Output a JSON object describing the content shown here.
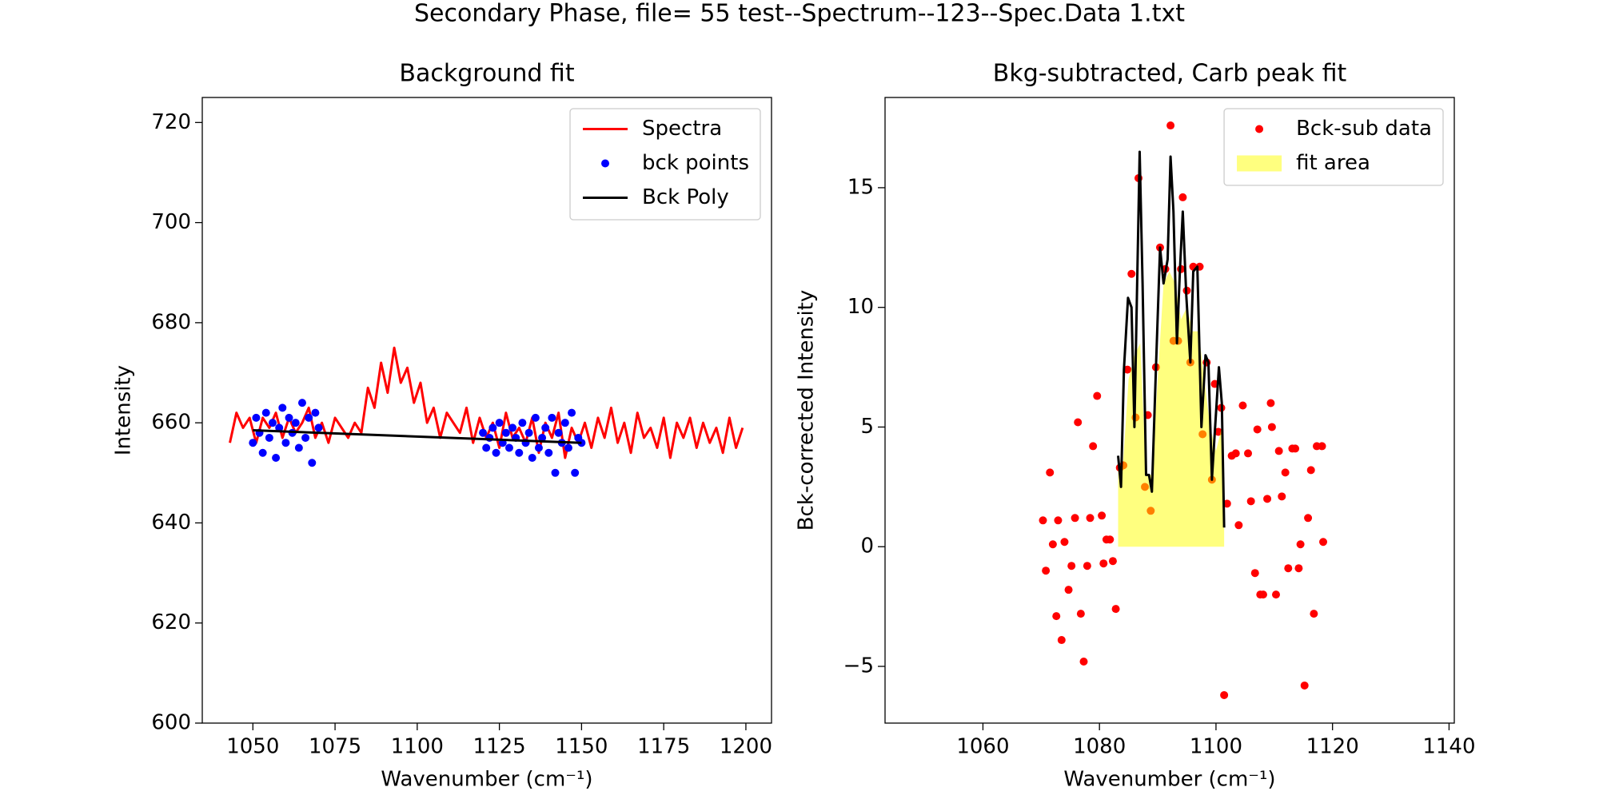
{
  "title": "Secondary Phase, file= 55 test--Spectrum--123--Spec.Data 1.txt",
  "chart_data": [
    {
      "type": "line",
      "title": "Background fit",
      "x_label": "Wavenumber (cm⁻¹)",
      "y_label": "Intensity",
      "xlim": [
        1034.6,
        1207.8
      ],
      "ylim": [
        600,
        725
      ],
      "xticks": [
        1050,
        1075,
        1100,
        1125,
        1150,
        1175,
        1200
      ],
      "yticks": [
        600,
        620,
        640,
        660,
        680,
        700,
        720
      ],
      "legend": "upper right",
      "series": [
        {
          "name": "Spectra",
          "style": "line",
          "color": "#ff0000",
          "x": [
            1043,
            1045,
            1047,
            1049,
            1051,
            1053,
            1055,
            1057,
            1059,
            1061,
            1063,
            1065,
            1067,
            1069,
            1071,
            1073,
            1075,
            1077,
            1079,
            1081,
            1083,
            1085,
            1087,
            1089,
            1091,
            1093,
            1095,
            1097,
            1099,
            1101,
            1103,
            1105,
            1107,
            1109,
            1111,
            1113,
            1115,
            1117,
            1119,
            1121,
            1123,
            1125,
            1127,
            1129,
            1131,
            1133,
            1135,
            1137,
            1139,
            1141,
            1143,
            1145,
            1147,
            1149,
            1151,
            1153,
            1155,
            1157,
            1159,
            1161,
            1163,
            1165,
            1167,
            1169,
            1171,
            1173,
            1175,
            1177,
            1179,
            1181,
            1183,
            1185,
            1187,
            1189,
            1191,
            1193,
            1195,
            1197,
            1199
          ],
          "values": [
            656,
            662,
            659,
            661,
            656,
            661,
            659,
            662,
            657,
            661,
            658,
            660,
            663,
            657,
            660,
            656,
            661,
            659,
            657,
            660,
            658,
            667,
            663,
            672,
            666,
            675,
            668,
            671,
            664,
            668,
            660,
            663,
            657,
            662,
            660,
            658,
            663,
            656,
            661,
            657,
            660,
            655,
            662,
            657,
            659,
            656,
            661,
            654,
            660,
            657,
            662,
            653,
            659,
            656,
            660,
            655,
            661,
            657,
            663,
            656,
            660,
            654,
            662,
            657,
            659,
            655,
            661,
            653,
            660,
            657,
            661,
            655,
            660,
            656,
            659,
            654,
            661,
            655,
            659
          ]
        },
        {
          "name": "bck points",
          "style": "scatter",
          "color": "#0000ff",
          "x": [
            1050,
            1051,
            1052,
            1053,
            1054,
            1055,
            1056,
            1057,
            1058,
            1059,
            1060,
            1061,
            1062,
            1063,
            1064,
            1065,
            1066,
            1067,
            1068,
            1069,
            1070,
            1120,
            1121,
            1122,
            1123,
            1124,
            1125,
            1126,
            1127,
            1128,
            1129,
            1130,
            1131,
            1132,
            1133,
            1134,
            1135,
            1136,
            1137,
            1138,
            1139,
            1140,
            1141,
            1142,
            1143,
            1144,
            1145,
            1146,
            1147,
            1148,
            1149,
            1150
          ],
          "values": [
            656,
            661,
            658,
            654,
            662,
            657,
            660,
            653,
            659,
            663,
            656,
            661,
            658,
            660,
            655,
            664,
            657,
            661,
            652,
            662,
            659,
            658,
            655,
            657,
            659,
            654,
            660,
            656,
            658,
            655,
            659,
            657,
            654,
            660,
            656,
            658,
            653,
            661,
            655,
            657,
            659,
            654,
            661,
            650,
            658,
            656,
            660,
            655,
            662,
            650,
            657,
            656
          ]
        },
        {
          "name": "Bck Poly",
          "style": "line",
          "color": "#000000",
          "x": [
            1050,
            1150
          ],
          "values": [
            658.5,
            656
          ]
        }
      ]
    },
    {
      "type": "line",
      "title": "Bkg-subtracted, Carb peak fit",
      "x_label": "Wavenumber (cm⁻¹)",
      "y_label": "Bck-corrected Intensity",
      "xlim": [
        1043.2,
        1140.9
      ],
      "ylim": [
        -7.37,
        18.77
      ],
      "xticks": [
        1060,
        1080,
        1100,
        1120,
        1140
      ],
      "yticks": [
        {
          "value": -5,
          "label": "−5"
        },
        0,
        5,
        10,
        15
      ],
      "legend": "upper right",
      "series": [
        {
          "name": "Bck-sub data",
          "style": "scatter",
          "color": "#ff0000",
          "x": [
            1070.3,
            1070.8,
            1071.5,
            1072.0,
            1072.6,
            1072.9,
            1073.5,
            1074.0,
            1074.7,
            1075.2,
            1075.8,
            1076.3,
            1076.8,
            1077.3,
            1077.9,
            1078.4,
            1078.9,
            1079.6,
            1080.4,
            1080.7,
            1081.2,
            1081.8,
            1082.3,
            1082.8,
            1083.5,
            1084.1,
            1084.8,
            1085.5,
            1086.2,
            1086.7,
            1087.8,
            1088.3,
            1088.8,
            1089.7,
            1090.4,
            1091.3,
            1092.2,
            1092.7,
            1093.5,
            1094.0,
            1094.3,
            1095.0,
            1095.6,
            1096.1,
            1097.2,
            1097.7,
            1098.4,
            1099.3,
            1099.8,
            1100.4,
            1100.9,
            1101.4,
            1101.9,
            1102.7,
            1103.4,
            1103.9,
            1104.6,
            1105.5,
            1106.0,
            1106.7,
            1107.1,
            1107.6,
            1108.1,
            1108.8,
            1109.4,
            1109.6,
            1110.3,
            1110.8,
            1111.3,
            1111.9,
            1112.4,
            1113.1,
            1113.6,
            1114.2,
            1114.5,
            1115.2,
            1115.8,
            1116.3,
            1116.8,
            1117.3,
            1118.2,
            1118.4
          ],
          "values": [
            1.1,
            -1.0,
            3.1,
            0.1,
            -2.9,
            1.1,
            -3.9,
            0.2,
            -1.8,
            -0.8,
            1.2,
            5.2,
            -2.8,
            -4.8,
            -0.8,
            1.2,
            4.2,
            6.3,
            1.3,
            -0.7,
            0.3,
            0.3,
            -0.6,
            -2.6,
            3.3,
            3.4,
            7.4,
            11.4,
            5.4,
            15.4,
            2.5,
            5.5,
            1.5,
            7.5,
            12.5,
            11.6,
            17.6,
            8.6,
            8.6,
            11.6,
            14.6,
            10.7,
            7.7,
            11.7,
            11.7,
            4.7,
            7.7,
            2.8,
            6.8,
            4.8,
            5.8,
            -6.2,
            1.8,
            3.8,
            3.9,
            0.9,
            5.9,
            3.9,
            1.9,
            -1.1,
            4.9,
            -2.0,
            -2.0,
            2.0,
            6.0,
            5.0,
            -2.0,
            4.0,
            2.1,
            3.1,
            -0.9,
            4.1,
            4.1,
            -0.9,
            0.1,
            -5.8,
            1.2,
            3.2,
            -2.8,
            4.2,
            4.2,
            0.2
          ]
        },
        {
          "name": "fit area",
          "style": "area",
          "color": "#ffff00",
          "opacity": 0.5,
          "x": [
            1083.2,
            1084,
            1085,
            1086,
            1087,
            1088,
            1089,
            1090,
            1091,
            1092,
            1093,
            1094,
            1095,
            1096,
            1097,
            1098,
            1099,
            1100,
            1101,
            1101.4
          ],
          "values": [
            3.5,
            3.3,
            7,
            8,
            8.5,
            3,
            3,
            7,
            11,
            11.5,
            11,
            9.5,
            10,
            9,
            9,
            7,
            5,
            4,
            5,
            1
          ]
        },
        {
          "style": "line",
          "color": "#000000",
          "x": [
            1083.2,
            1083.7,
            1084.2,
            1084.9,
            1085.5,
            1086.0,
            1086.9,
            1087.4,
            1088.0,
            1088.5,
            1089.0,
            1089.7,
            1090.4,
            1091.0,
            1091.7,
            1092.2,
            1092.7,
            1093.3,
            1093.8,
            1094.3,
            1094.9,
            1095.6,
            1096.1,
            1096.8,
            1097.5,
            1098.2,
            1098.7,
            1099.3,
            1099.8,
            1100.5,
            1101.0,
            1101.4
          ],
          "values": [
            3.8,
            2.5,
            7.4,
            10.4,
            10,
            5,
            16.5,
            11,
            3,
            3,
            2.3,
            7.5,
            12.5,
            11,
            12,
            16.3,
            14,
            8.5,
            11.5,
            14,
            10.5,
            7.7,
            11.5,
            11.7,
            5,
            8,
            7.7,
            2.8,
            4.8,
            7.5,
            6,
            0.8
          ]
        }
      ]
    }
  ]
}
